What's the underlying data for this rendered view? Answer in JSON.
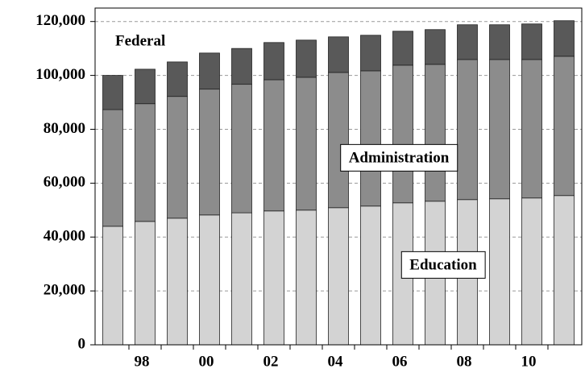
{
  "chart_data": {
    "type": "stacked_bar",
    "categories": [
      null,
      "98",
      null,
      "00",
      null,
      "02",
      null,
      "04",
      null,
      "06",
      null,
      "08",
      null,
      "10",
      null
    ],
    "series": [
      {
        "name": "Education",
        "color": "#d3d3d3",
        "values": [
          44,
          45.8,
          47,
          48.2,
          49,
          49.7,
          50,
          50.9,
          51.5,
          52.7,
          53.3,
          53.9,
          54.2,
          54.5,
          55.4
        ]
      },
      {
        "name": "Administration",
        "color": "#8c8c8c",
        "values": [
          43.3,
          43.7,
          45.2,
          46.7,
          47.7,
          48.7,
          49.3,
          50.2,
          50.2,
          51.1,
          50.8,
          52,
          51.7,
          51.4,
          51.7
        ]
      },
      {
        "name": "Federal",
        "color": "#595959",
        "values": [
          12.7,
          12.8,
          12.8,
          13.4,
          13.3,
          13.8,
          13.8,
          13.2,
          13.2,
          12.6,
          12.9,
          12.9,
          12.9,
          13.2,
          13.2
        ]
      }
    ],
    "value_scale": 1000,
    "ylim": [
      0,
      125000
    ],
    "yticks": [
      0,
      {
        "value": 20000,
        "label": "20,000"
      },
      {
        "value": 40000,
        "label": "40,000"
      },
      {
        "value": 60000,
        "label": "60,000"
      },
      {
        "value": 80000,
        "label": "80,000"
      },
      {
        "value": 100000,
        "label": "100,000"
      },
      {
        "value": 120000,
        "label": "120,000"
      }
    ],
    "grid": true
  }
}
